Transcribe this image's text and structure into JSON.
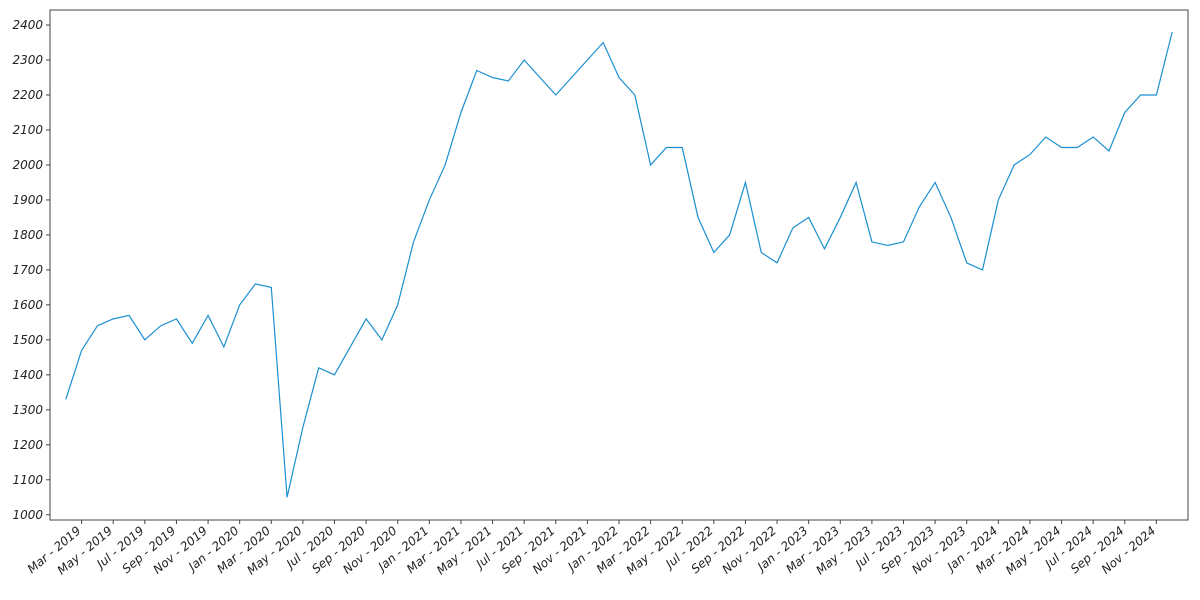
{
  "chart_data": {
    "type": "line",
    "color": "#1a8fd0",
    "x": [
      "2019-02",
      "2019-03",
      "2019-04",
      "2019-05",
      "2019-06",
      "2019-07",
      "2019-08",
      "2019-09",
      "2019-10",
      "2019-11",
      "2019-12",
      "2020-01",
      "2020-02",
      "2020-03",
      "2020-04",
      "2020-05",
      "2020-06",
      "2020-07",
      "2020-08",
      "2020-09",
      "2020-10",
      "2020-11",
      "2020-12",
      "2021-01",
      "2021-02",
      "2021-03",
      "2021-04",
      "2021-05",
      "2021-06",
      "2021-07",
      "2021-08",
      "2021-09",
      "2021-10",
      "2021-11",
      "2021-12",
      "2022-01",
      "2022-02",
      "2022-03",
      "2022-04",
      "2022-05",
      "2022-06",
      "2022-07",
      "2022-08",
      "2022-09",
      "2022-10",
      "2022-11",
      "2022-12",
      "2023-01",
      "2023-02",
      "2023-03",
      "2023-04",
      "2023-05",
      "2023-06",
      "2023-07",
      "2023-08",
      "2023-09",
      "2023-10",
      "2023-11",
      "2023-12",
      "2024-01",
      "2024-02",
      "2024-03",
      "2024-04",
      "2024-05",
      "2024-06",
      "2024-07",
      "2024-08",
      "2024-09",
      "2024-10",
      "2024-11",
      "2024-12"
    ],
    "values": [
      1330,
      1470,
      1540,
      1560,
      1570,
      1500,
      1540,
      1560,
      1490,
      1570,
      1480,
      1600,
      1660,
      1650,
      1050,
      1250,
      1420,
      1400,
      1480,
      1560,
      1500,
      1600,
      1780,
      1900,
      2000,
      2150,
      2270,
      2250,
      2240,
      2300,
      2250,
      2200,
      2250,
      2300,
      2350,
      2250,
      2200,
      2000,
      2050,
      2050,
      1850,
      1750,
      1800,
      1950,
      1750,
      1720,
      1820,
      1850,
      1760,
      1850,
      1950,
      1780,
      1770,
      1780,
      1880,
      1950,
      1850,
      1720,
      1700,
      1900,
      2000,
      2030,
      2080,
      2050,
      2050,
      2080,
      2040,
      2150,
      2200,
      2200,
      2380
    ],
    "xlim": [
      "2019-01",
      "2025-01"
    ],
    "xticks": [
      {
        "value": "2019-03",
        "label": "Mar - 2019"
      },
      {
        "value": "2019-05",
        "label": "May - 2019"
      },
      {
        "value": "2019-07",
        "label": "Jul - 2019"
      },
      {
        "value": "2019-09",
        "label": "Sep - 2019"
      },
      {
        "value": "2019-11",
        "label": "Nov - 2019"
      },
      {
        "value": "2020-01",
        "label": "Jan - 2020"
      },
      {
        "value": "2020-03",
        "label": "Mar - 2020"
      },
      {
        "value": "2020-05",
        "label": "May - 2020"
      },
      {
        "value": "2020-07",
        "label": "Jul - 2020"
      },
      {
        "value": "2020-09",
        "label": "Sep - 2020"
      },
      {
        "value": "2020-11",
        "label": "Nov - 2020"
      },
      {
        "value": "2021-01",
        "label": "Jan - 2021"
      },
      {
        "value": "2021-03",
        "label": "Mar - 2021"
      },
      {
        "value": "2021-05",
        "label": "May - 2021"
      },
      {
        "value": "2021-07",
        "label": "Jul - 2021"
      },
      {
        "value": "2021-09",
        "label": "Sep - 2021"
      },
      {
        "value": "2021-11",
        "label": "Nov - 2021"
      },
      {
        "value": "2022-01",
        "label": "Jan - 2022"
      },
      {
        "value": "2022-03",
        "label": "Mar - 2022"
      },
      {
        "value": "2022-05",
        "label": "May - 2022"
      },
      {
        "value": "2022-07",
        "label": "Jul - 2022"
      },
      {
        "value": "2022-09",
        "label": "Sep - 2022"
      },
      {
        "value": "2022-11",
        "label": "Nov - 2022"
      },
      {
        "value": "2023-01",
        "label": "Jan - 2023"
      },
      {
        "value": "2023-03",
        "label": "Mar - 2023"
      },
      {
        "value": "2023-05",
        "label": "May - 2023"
      },
      {
        "value": "2023-07",
        "label": "Jul - 2023"
      },
      {
        "value": "2023-09",
        "label": "Sep - 2023"
      },
      {
        "value": "2023-11",
        "label": "Nov - 2023"
      },
      {
        "value": "2024-01",
        "label": "Jan - 2024"
      },
      {
        "value": "2024-03",
        "label": "Mar - 2024"
      },
      {
        "value": "2024-05",
        "label": "May - 2024"
      },
      {
        "value": "2024-07",
        "label": "Jul - 2024"
      },
      {
        "value": "2024-09",
        "label": "Sep - 2024"
      },
      {
        "value": "2024-11",
        "label": "Nov - 2024"
      }
    ],
    "ylim": [
      985,
      2443
    ],
    "yticks": [
      1000,
      1100,
      1200,
      1300,
      1400,
      1500,
      1600,
      1700,
      1800,
      1900,
      2000,
      2100,
      2200,
      2300,
      2400
    ]
  }
}
